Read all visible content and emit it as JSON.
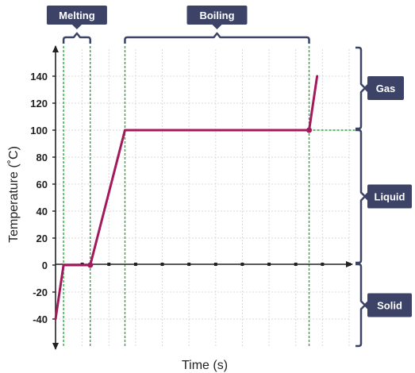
{
  "chart_data": {
    "type": "line",
    "xlabel": "Time (s)",
    "ylabel": "Temperature (˚C)",
    "ylim": [
      -60,
      160
    ],
    "xlim": [
      0,
      11
    ],
    "yticks": [
      -40,
      -20,
      0,
      20,
      40,
      60,
      80,
      100,
      120,
      140
    ],
    "grid": true,
    "x_tick_labels_shown": false,
    "series": [
      {
        "x": [
          0,
          0.3,
          1.3,
          2.6,
          9.5,
          9.8
        ],
        "y": [
          -40,
          0,
          0,
          100,
          100,
          140
        ]
      }
    ],
    "annotations": {
      "top": [
        {
          "label": "Melting",
          "x_start": 0.3,
          "x_end": 1.3
        },
        {
          "label": "Boiling",
          "x_start": 2.6,
          "x_end": 9.5
        }
      ],
      "right": [
        {
          "label": "Gas",
          "y_start": 100,
          "y_end": 160
        },
        {
          "label": "Liquid",
          "y_start": 0,
          "y_end": 100
        },
        {
          "label": "Solid",
          "y_start": -60,
          "y_end": 0
        }
      ]
    }
  },
  "colors": {
    "line": "#a3195b",
    "callout_bg": "#3d4366",
    "bracket": "#3d4366",
    "guide": "#2eaa3c",
    "grid": "#d9d9d9",
    "axis": "#222222"
  }
}
